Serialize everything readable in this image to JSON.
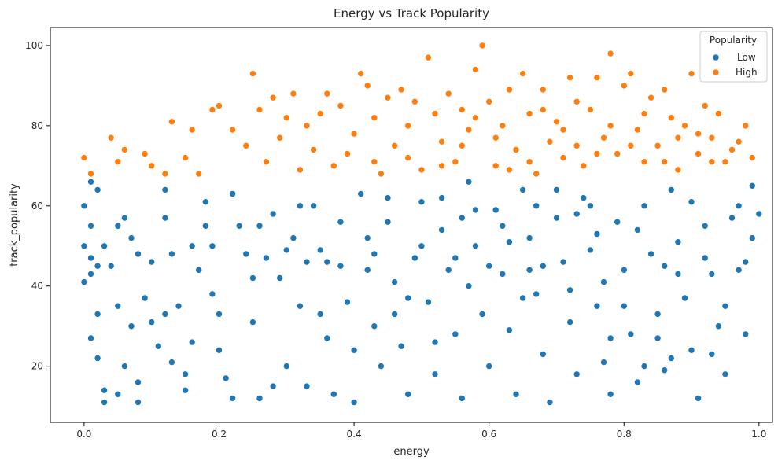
{
  "chart_data": {
    "type": "scatter",
    "title": "Energy vs Track Popularity",
    "xlabel": "energy",
    "ylabel": "track_popularity",
    "xlim": [
      -0.05,
      1.02
    ],
    "ylim": [
      6,
      104.5
    ],
    "x_ticks": [
      {
        "value": 0.0,
        "label": "0.0"
      },
      {
        "value": 0.2,
        "label": "0.2"
      },
      {
        "value": 0.4,
        "label": "0.4"
      },
      {
        "value": 0.6,
        "label": "0.6"
      },
      {
        "value": 0.8,
        "label": "0.8"
      },
      {
        "value": 1.0,
        "label": "1.0"
      }
    ],
    "y_ticks": [
      {
        "value": 20,
        "label": "20"
      },
      {
        "value": 40,
        "label": "40"
      },
      {
        "value": 60,
        "label": "60"
      },
      {
        "value": 80,
        "label": "80"
      },
      {
        "value": 100,
        "label": "100"
      }
    ],
    "grid": false,
    "legend": {
      "title": "Popularity",
      "placement": "top-right",
      "entries": [
        {
          "label": "Low",
          "color": "#1f77b4"
        },
        {
          "label": "High",
          "color": "#ff7f0e"
        }
      ]
    },
    "series": [
      {
        "name": "Low",
        "color": "#1f77b4",
        "points": [
          [
            0.01,
            66
          ],
          [
            0.02,
            64
          ],
          [
            0.0,
            60
          ],
          [
            0.01,
            55
          ],
          [
            0.0,
            50
          ],
          [
            0.01,
            47
          ],
          [
            0.02,
            45
          ],
          [
            0.01,
            43
          ],
          [
            0.0,
            41
          ],
          [
            0.02,
            33
          ],
          [
            0.01,
            27
          ],
          [
            0.02,
            22
          ],
          [
            0.03,
            14
          ],
          [
            0.03,
            11
          ],
          [
            0.05,
            13
          ],
          [
            0.06,
            57
          ],
          [
            0.07,
            52
          ],
          [
            0.04,
            45
          ],
          [
            0.05,
            35
          ],
          [
            0.07,
            30
          ],
          [
            0.06,
            20
          ],
          [
            0.08,
            16
          ],
          [
            0.08,
            11
          ],
          [
            0.09,
            37
          ],
          [
            0.1,
            31
          ],
          [
            0.11,
            25
          ],
          [
            0.12,
            64
          ],
          [
            0.12,
            57
          ],
          [
            0.13,
            48
          ],
          [
            0.14,
            35
          ],
          [
            0.13,
            21
          ],
          [
            0.15,
            14
          ],
          [
            0.16,
            26
          ],
          [
            0.17,
            44
          ],
          [
            0.18,
            55
          ],
          [
            0.19,
            50
          ],
          [
            0.19,
            38
          ],
          [
            0.2,
            24
          ],
          [
            0.21,
            17
          ],
          [
            0.22,
            12
          ],
          [
            0.23,
            55
          ],
          [
            0.24,
            48
          ],
          [
            0.25,
            31
          ],
          [
            0.26,
            12
          ],
          [
            0.27,
            47
          ],
          [
            0.28,
            58
          ],
          [
            0.29,
            42
          ],
          [
            0.3,
            20
          ],
          [
            0.31,
            52
          ],
          [
            0.32,
            35
          ],
          [
            0.33,
            15
          ],
          [
            0.34,
            60
          ],
          [
            0.35,
            49
          ],
          [
            0.36,
            27
          ],
          [
            0.37,
            13
          ],
          [
            0.38,
            45
          ],
          [
            0.39,
            36
          ],
          [
            0.4,
            11
          ],
          [
            0.41,
            63
          ],
          [
            0.42,
            52
          ],
          [
            0.43,
            30
          ],
          [
            0.44,
            20
          ],
          [
            0.45,
            56
          ],
          [
            0.46,
            41
          ],
          [
            0.47,
            25
          ],
          [
            0.48,
            13
          ],
          [
            0.49,
            47
          ],
          [
            0.5,
            61
          ],
          [
            0.51,
            36
          ],
          [
            0.52,
            18
          ],
          [
            0.53,
            54
          ],
          [
            0.54,
            44
          ],
          [
            0.55,
            28
          ],
          [
            0.56,
            12
          ],
          [
            0.57,
            66
          ],
          [
            0.58,
            50
          ],
          [
            0.59,
            33
          ],
          [
            0.6,
            20
          ],
          [
            0.61,
            59
          ],
          [
            0.62,
            43
          ],
          [
            0.63,
            29
          ],
          [
            0.64,
            13
          ],
          [
            0.65,
            64
          ],
          [
            0.66,
            52
          ],
          [
            0.67,
            38
          ],
          [
            0.68,
            23
          ],
          [
            0.69,
            11
          ],
          [
            0.7,
            57
          ],
          [
            0.71,
            46
          ],
          [
            0.72,
            31
          ],
          [
            0.73,
            18
          ],
          [
            0.74,
            62
          ],
          [
            0.75,
            49
          ],
          [
            0.76,
            35
          ],
          [
            0.77,
            21
          ],
          [
            0.78,
            13
          ],
          [
            0.79,
            56
          ],
          [
            0.8,
            44
          ],
          [
            0.81,
            28
          ],
          [
            0.82,
            16
          ],
          [
            0.83,
            60
          ],
          [
            0.84,
            48
          ],
          [
            0.85,
            33
          ],
          [
            0.86,
            19
          ],
          [
            0.87,
            64
          ],
          [
            0.88,
            51
          ],
          [
            0.89,
            37
          ],
          [
            0.9,
            24
          ],
          [
            0.91,
            12
          ],
          [
            0.92,
            55
          ],
          [
            0.93,
            43
          ],
          [
            0.94,
            30
          ],
          [
            0.95,
            18
          ],
          [
            0.96,
            57
          ],
          [
            0.97,
            44
          ],
          [
            0.98,
            28
          ],
          [
            0.99,
            65
          ],
          [
            1.0,
            58
          ],
          [
            0.99,
            52
          ],
          [
            0.98,
            46
          ],
          [
            0.12,
            33
          ],
          [
            0.22,
            63
          ],
          [
            0.32,
            60
          ],
          [
            0.42,
            44
          ],
          [
            0.52,
            26
          ],
          [
            0.62,
            55
          ],
          [
            0.72,
            39
          ],
          [
            0.82,
            54
          ],
          [
            0.92,
            47
          ],
          [
            0.15,
            18
          ],
          [
            0.25,
            42
          ],
          [
            0.35,
            33
          ],
          [
            0.45,
            62
          ],
          [
            0.55,
            47
          ],
          [
            0.65,
            37
          ],
          [
            0.75,
            60
          ],
          [
            0.85,
            27
          ],
          [
            0.95,
            35
          ],
          [
            0.18,
            61
          ],
          [
            0.28,
            15
          ],
          [
            0.38,
            56
          ],
          [
            0.48,
            37
          ],
          [
            0.58,
            59
          ],
          [
            0.68,
            45
          ],
          [
            0.78,
            27
          ],
          [
            0.88,
            43
          ],
          [
            0.05,
            55
          ],
          [
            0.08,
            48
          ],
          [
            0.33,
            46
          ],
          [
            0.57,
            40
          ],
          [
            0.67,
            60
          ],
          [
            0.77,
            41
          ],
          [
            0.87,
            22
          ],
          [
            0.97,
            60
          ],
          [
            0.1,
            46
          ],
          [
            0.2,
            33
          ],
          [
            0.3,
            49
          ],
          [
            0.4,
            24
          ],
          [
            0.5,
            50
          ],
          [
            0.6,
            45
          ],
          [
            0.7,
            64
          ],
          [
            0.8,
            35
          ],
          [
            0.9,
            61
          ],
          [
            0.03,
            50
          ],
          [
            0.43,
            48
          ],
          [
            0.53,
            62
          ],
          [
            0.63,
            51
          ],
          [
            0.73,
            58
          ],
          [
            0.83,
            20
          ],
          [
            0.93,
            23
          ],
          [
            0.16,
            50
          ],
          [
            0.26,
            55
          ],
          [
            0.36,
            46
          ],
          [
            0.46,
            33
          ],
          [
            0.56,
            57
          ],
          [
            0.66,
            44
          ],
          [
            0.76,
            53
          ],
          [
            0.86,
            45
          ]
        ]
      },
      {
        "name": "High",
        "color": "#ff7f0e",
        "points": [
          [
            0.0,
            72
          ],
          [
            0.01,
            68
          ],
          [
            0.05,
            71
          ],
          [
            0.06,
            74
          ],
          [
            0.04,
            77
          ],
          [
            0.09,
            73
          ],
          [
            0.1,
            70
          ],
          [
            0.12,
            68
          ],
          [
            0.13,
            81
          ],
          [
            0.15,
            72
          ],
          [
            0.16,
            79
          ],
          [
            0.17,
            68
          ],
          [
            0.19,
            84
          ],
          [
            0.2,
            85
          ],
          [
            0.22,
            79
          ],
          [
            0.24,
            75
          ],
          [
            0.25,
            93
          ],
          [
            0.26,
            84
          ],
          [
            0.27,
            71
          ],
          [
            0.28,
            87
          ],
          [
            0.29,
            77
          ],
          [
            0.3,
            82
          ],
          [
            0.31,
            88
          ],
          [
            0.32,
            69
          ],
          [
            0.33,
            80
          ],
          [
            0.34,
            74
          ],
          [
            0.35,
            83
          ],
          [
            0.36,
            88
          ],
          [
            0.37,
            70
          ],
          [
            0.38,
            85
          ],
          [
            0.39,
            73
          ],
          [
            0.4,
            78
          ],
          [
            0.41,
            93
          ],
          [
            0.42,
            90
          ],
          [
            0.43,
            82
          ],
          [
            0.44,
            68
          ],
          [
            0.45,
            87
          ],
          [
            0.46,
            75
          ],
          [
            0.47,
            89
          ],
          [
            0.48,
            72
          ],
          [
            0.49,
            86
          ],
          [
            0.5,
            69
          ],
          [
            0.51,
            97
          ],
          [
            0.52,
            83
          ],
          [
            0.53,
            76
          ],
          [
            0.54,
            88
          ],
          [
            0.55,
            71
          ],
          [
            0.56,
            84
          ],
          [
            0.57,
            79
          ],
          [
            0.58,
            94
          ],
          [
            0.59,
            100
          ],
          [
            0.6,
            86
          ],
          [
            0.61,
            70
          ],
          [
            0.62,
            80
          ],
          [
            0.63,
            89
          ],
          [
            0.64,
            74
          ],
          [
            0.65,
            93
          ],
          [
            0.66,
            83
          ],
          [
            0.67,
            68
          ],
          [
            0.68,
            89
          ],
          [
            0.69,
            76
          ],
          [
            0.7,
            81
          ],
          [
            0.71,
            72
          ],
          [
            0.72,
            92
          ],
          [
            0.73,
            86
          ],
          [
            0.74,
            70
          ],
          [
            0.75,
            84
          ],
          [
            0.76,
            92
          ],
          [
            0.77,
            77
          ],
          [
            0.78,
            98
          ],
          [
            0.79,
            73
          ],
          [
            0.8,
            90
          ],
          [
            0.81,
            93
          ],
          [
            0.82,
            79
          ],
          [
            0.83,
            71
          ],
          [
            0.84,
            87
          ],
          [
            0.85,
            75
          ],
          [
            0.86,
            89
          ],
          [
            0.87,
            82
          ],
          [
            0.88,
            69
          ],
          [
            0.89,
            80
          ],
          [
            0.9,
            93
          ],
          [
            0.91,
            73
          ],
          [
            0.92,
            85
          ],
          [
            0.93,
            77
          ],
          [
            0.94,
            83
          ],
          [
            0.95,
            71
          ],
          [
            0.96,
            74
          ],
          [
            0.97,
            76
          ],
          [
            0.98,
            80
          ],
          [
            0.99,
            72
          ],
          [
            0.53,
            70
          ],
          [
            0.56,
            75
          ],
          [
            0.61,
            77
          ],
          [
            0.66,
            71
          ],
          [
            0.71,
            79
          ],
          [
            0.76,
            73
          ],
          [
            0.81,
            75
          ],
          [
            0.86,
            71
          ],
          [
            0.91,
            78
          ],
          [
            0.48,
            80
          ],
          [
            0.58,
            82
          ],
          [
            0.68,
            84
          ],
          [
            0.78,
            80
          ],
          [
            0.88,
            77
          ],
          [
            0.43,
            71
          ],
          [
            0.63,
            69
          ],
          [
            0.73,
            75
          ],
          [
            0.83,
            83
          ],
          [
            0.93,
            71
          ]
        ]
      }
    ]
  }
}
